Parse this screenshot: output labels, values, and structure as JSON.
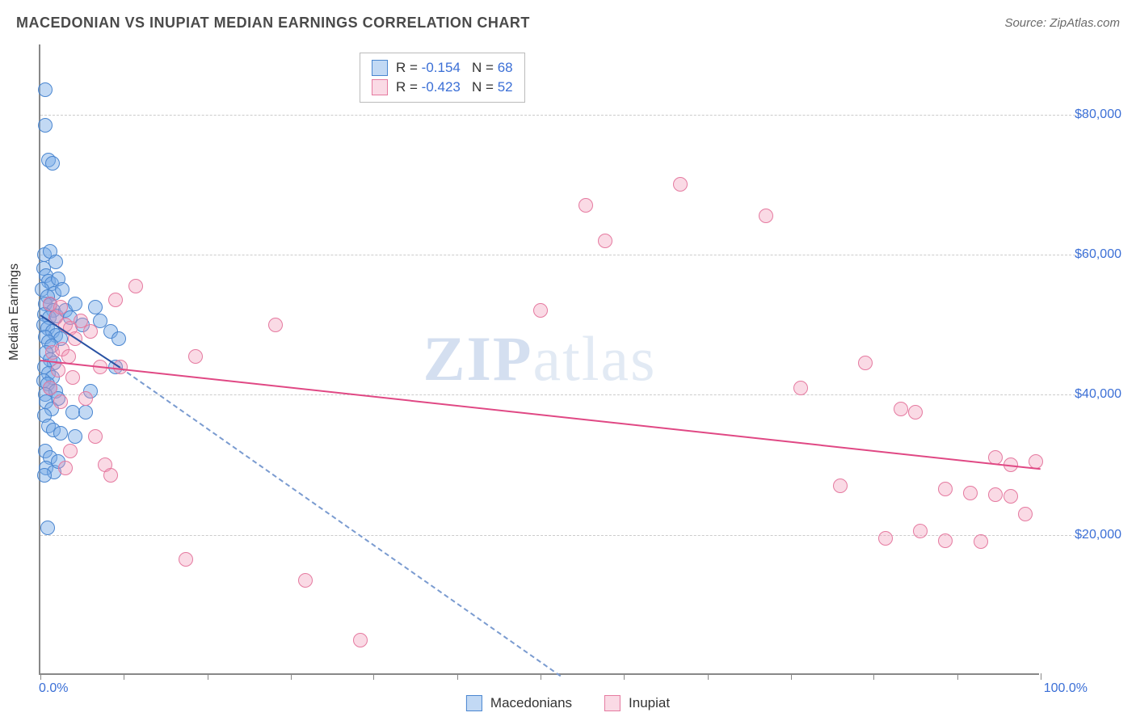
{
  "header": {
    "title": "MACEDONIAN VS INUPIAT MEDIAN EARNINGS CORRELATION CHART",
    "source": "Source: ZipAtlas.com"
  },
  "chart": {
    "type": "scatter",
    "ylabel": "Median Earnings",
    "xlim": [
      0,
      100
    ],
    "ylim": [
      0,
      90000
    ],
    "xtick_labels": {
      "left": "0.0%",
      "right": "100.0%"
    },
    "xtick_positions_pct": [
      0,
      8.3,
      16.7,
      25,
      33.3,
      41.7,
      50,
      58.3,
      66.7,
      75,
      83.3,
      91.7,
      100
    ],
    "ytick_values": [
      20000,
      40000,
      60000,
      80000
    ],
    "ytick_labels": [
      "$20,000",
      "$40,000",
      "$60,000",
      "$80,000"
    ],
    "grid_color": "#cccccc",
    "background_color": "#ffffff",
    "axis_color": "#888888",
    "point_radius": 9,
    "series": [
      {
        "name": "Macedonians",
        "color_fill": "rgba(120,170,230,0.45)",
        "color_stroke": "#4a86d0",
        "R": -0.154,
        "N": 68,
        "trend": {
          "x1": 0,
          "y1": 51500,
          "x2": 8,
          "y2": 44000,
          "extrap_x2": 52,
          "extrap_y2": 0,
          "color": "#2952a3"
        },
        "points": [
          [
            0.5,
            83500
          ],
          [
            0.5,
            78500
          ],
          [
            0.8,
            73500
          ],
          [
            1.2,
            73000
          ],
          [
            0.4,
            60000
          ],
          [
            1.0,
            60500
          ],
          [
            0.3,
            58000
          ],
          [
            1.5,
            59000
          ],
          [
            0.6,
            57000
          ],
          [
            0.8,
            56200
          ],
          [
            1.1,
            55800
          ],
          [
            0.2,
            55000
          ],
          [
            1.4,
            54500
          ],
          [
            0.7,
            54000
          ],
          [
            1.8,
            56500
          ],
          [
            2.2,
            55000
          ],
          [
            0.5,
            53000
          ],
          [
            1.0,
            52800
          ],
          [
            1.3,
            52000
          ],
          [
            0.4,
            51500
          ],
          [
            0.9,
            51000
          ],
          [
            1.6,
            51200
          ],
          [
            2.5,
            52000
          ],
          [
            0.3,
            50000
          ],
          [
            0.7,
            49500
          ],
          [
            1.2,
            49000
          ],
          [
            1.5,
            48500
          ],
          [
            0.5,
            48200
          ],
          [
            2.0,
            48000
          ],
          [
            0.8,
            47500
          ],
          [
            1.1,
            47000
          ],
          [
            3.0,
            51000
          ],
          [
            3.5,
            53000
          ],
          [
            4.2,
            50000
          ],
          [
            5.5,
            52500
          ],
          [
            6.0,
            50500
          ],
          [
            7.0,
            49000
          ],
          [
            7.8,
            48000
          ],
          [
            0.6,
            46000
          ],
          [
            1.0,
            45000
          ],
          [
            1.4,
            44500
          ],
          [
            0.4,
            44000
          ],
          [
            0.8,
            43000
          ],
          [
            1.2,
            42500
          ],
          [
            0.3,
            42000
          ],
          [
            0.7,
            41500
          ],
          [
            1.0,
            41000
          ],
          [
            1.5,
            40500
          ],
          [
            0.5,
            40000
          ],
          [
            7.5,
            44000
          ],
          [
            5.0,
            40500
          ],
          [
            1.8,
            39500
          ],
          [
            0.6,
            39000
          ],
          [
            1.1,
            38000
          ],
          [
            0.4,
            37000
          ],
          [
            3.2,
            37500
          ],
          [
            4.5,
            37500
          ],
          [
            0.8,
            35500
          ],
          [
            1.3,
            35000
          ],
          [
            2.0,
            34500
          ],
          [
            0.5,
            32000
          ],
          [
            3.5,
            34000
          ],
          [
            1.0,
            31000
          ],
          [
            0.6,
            29500
          ],
          [
            1.4,
            29000
          ],
          [
            0.4,
            28500
          ],
          [
            1.8,
            30500
          ],
          [
            0.7,
            21000
          ]
        ]
      },
      {
        "name": "Inupiat",
        "color_fill": "rgba(240,150,180,0.35)",
        "color_stroke": "#e57aa0",
        "R": -0.423,
        "N": 52,
        "trend": {
          "x1": 0,
          "y1": 45000,
          "x2": 100,
          "y2": 29500,
          "color": "#e04884"
        },
        "points": [
          [
            1.0,
            53000
          ],
          [
            1.5,
            51000
          ],
          [
            2.0,
            52500
          ],
          [
            2.5,
            50000
          ],
          [
            3.0,
            49500
          ],
          [
            3.5,
            48000
          ],
          [
            1.2,
            46000
          ],
          [
            2.2,
            46500
          ],
          [
            4.0,
            50500
          ],
          [
            5.0,
            49000
          ],
          [
            7.5,
            53500
          ],
          [
            9.5,
            55500
          ],
          [
            1.8,
            43500
          ],
          [
            2.8,
            45500
          ],
          [
            3.2,
            42500
          ],
          [
            1.0,
            41000
          ],
          [
            6.0,
            44000
          ],
          [
            4.5,
            39500
          ],
          [
            15.5,
            45500
          ],
          [
            8.0,
            44000
          ],
          [
            23.5,
            50000
          ],
          [
            2.0,
            39000
          ],
          [
            5.5,
            34000
          ],
          [
            3.0,
            32000
          ],
          [
            2.5,
            29500
          ],
          [
            6.5,
            30000
          ],
          [
            7.0,
            28500
          ],
          [
            14.5,
            16500
          ],
          [
            26.5,
            13500
          ],
          [
            32.0,
            5000
          ],
          [
            50.0,
            52000
          ],
          [
            54.5,
            67000
          ],
          [
            56.5,
            62000
          ],
          [
            64.0,
            70000
          ],
          [
            72.5,
            65500
          ],
          [
            82.5,
            44500
          ],
          [
            76.0,
            41000
          ],
          [
            86.0,
            38000
          ],
          [
            87.5,
            37500
          ],
          [
            80.0,
            27000
          ],
          [
            99.5,
            30500
          ],
          [
            95.5,
            31000
          ],
          [
            97.0,
            30000
          ],
          [
            88.0,
            20500
          ],
          [
            90.5,
            26500
          ],
          [
            93.0,
            26000
          ],
          [
            95.5,
            25700
          ],
          [
            97.0,
            25500
          ],
          [
            84.5,
            19500
          ],
          [
            90.5,
            19200
          ],
          [
            94.0,
            19000
          ],
          [
            98.5,
            23000
          ]
        ]
      }
    ],
    "legend_bottom": [
      "Macedonians",
      "Inupiat"
    ],
    "watermark": "ZIPatlas"
  }
}
